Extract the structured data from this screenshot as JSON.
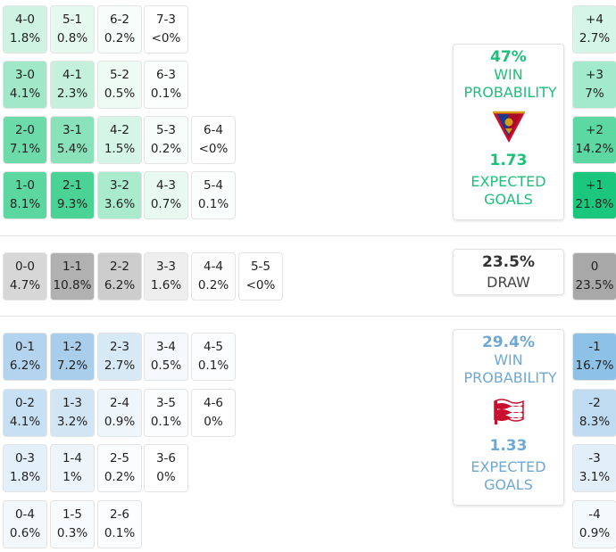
{
  "colors": {
    "home_accent": "#1fbf7a",
    "away_accent": "#6fa8d3",
    "draw_accent": "#333333"
  },
  "home": {
    "win_probability": "47%",
    "win_label": "WIN PROBABILITY",
    "expected_goals": "1.73",
    "xg_label": "EXPECTED GOALS",
    "crest": "pogon-szczecin-crest"
  },
  "draw": {
    "probability": "23.5%",
    "label": "DRAW"
  },
  "away": {
    "win_probability": "29.4%",
    "win_label": "WIN PROBABILITY",
    "expected_goals": "1.33",
    "xg_label": "EXPECTED GOALS",
    "crest": "cracovia-crest"
  },
  "chart_data": {
    "type": "heatmap",
    "title": "",
    "home_wins": [
      [
        {
          "score": "4-0",
          "p": "1.8%",
          "v": 1.8
        },
        {
          "score": "5-1",
          "p": "0.8%",
          "v": 0.8
        },
        {
          "score": "6-2",
          "p": "0.2%",
          "v": 0.2
        },
        {
          "score": "7-3",
          "p": "<0%",
          "v": 0
        }
      ],
      [
        {
          "score": "3-0",
          "p": "4.1%",
          "v": 4.1
        },
        {
          "score": "4-1",
          "p": "2.3%",
          "v": 2.3
        },
        {
          "score": "5-2",
          "p": "0.5%",
          "v": 0.5
        },
        {
          "score": "6-3",
          "p": "0.1%",
          "v": 0.1
        }
      ],
      [
        {
          "score": "2-0",
          "p": "7.1%",
          "v": 7.1
        },
        {
          "score": "3-1",
          "p": "5.4%",
          "v": 5.4
        },
        {
          "score": "4-2",
          "p": "1.5%",
          "v": 1.5
        },
        {
          "score": "5-3",
          "p": "0.2%",
          "v": 0.2
        },
        {
          "score": "6-4",
          "p": "<0%",
          "v": 0
        }
      ],
      [
        {
          "score": "1-0",
          "p": "8.1%",
          "v": 8.1
        },
        {
          "score": "2-1",
          "p": "9.3%",
          "v": 9.3
        },
        {
          "score": "3-2",
          "p": "3.6%",
          "v": 3.6
        },
        {
          "score": "4-3",
          "p": "0.7%",
          "v": 0.7
        },
        {
          "score": "5-4",
          "p": "0.1%",
          "v": 0.1
        }
      ]
    ],
    "draws": [
      {
        "score": "0-0",
        "p": "4.7%",
        "v": 4.7
      },
      {
        "score": "1-1",
        "p": "10.8%",
        "v": 10.8
      },
      {
        "score": "2-2",
        "p": "6.2%",
        "v": 6.2
      },
      {
        "score": "3-3",
        "p": "1.6%",
        "v": 1.6
      },
      {
        "score": "4-4",
        "p": "0.2%",
        "v": 0.2
      },
      {
        "score": "5-5",
        "p": "<0%",
        "v": 0
      }
    ],
    "away_wins": [
      [
        {
          "score": "0-1",
          "p": "6.2%",
          "v": 6.2
        },
        {
          "score": "1-2",
          "p": "7.2%",
          "v": 7.2
        },
        {
          "score": "2-3",
          "p": "2.7%",
          "v": 2.7
        },
        {
          "score": "3-4",
          "p": "0.5%",
          "v": 0.5
        },
        {
          "score": "4-5",
          "p": "0.1%",
          "v": 0.1
        }
      ],
      [
        {
          "score": "0-2",
          "p": "4.1%",
          "v": 4.1
        },
        {
          "score": "1-3",
          "p": "3.2%",
          "v": 3.2
        },
        {
          "score": "2-4",
          "p": "0.9%",
          "v": 0.9
        },
        {
          "score": "3-5",
          "p": "0.1%",
          "v": 0.1
        },
        {
          "score": "4-6",
          "p": "0%",
          "v": 0
        }
      ],
      [
        {
          "score": "0-3",
          "p": "1.8%",
          "v": 1.8
        },
        {
          "score": "1-4",
          "p": "1%",
          "v": 1.0
        },
        {
          "score": "2-5",
          "p": "0.2%",
          "v": 0.2
        },
        {
          "score": "3-6",
          "p": "0%",
          "v": 0
        }
      ],
      [
        {
          "score": "0-4",
          "p": "0.6%",
          "v": 0.6
        },
        {
          "score": "1-5",
          "p": "0.3%",
          "v": 0.3
        },
        {
          "score": "2-6",
          "p": "0.1%",
          "v": 0.1
        }
      ]
    ],
    "goal_difference": {
      "home": [
        {
          "label": "+4",
          "p": "2.7%",
          "v": 2.7
        },
        {
          "label": "+3",
          "p": "7%",
          "v": 7.0
        },
        {
          "label": "+2",
          "p": "14.2%",
          "v": 14.2
        },
        {
          "label": "+1",
          "p": "21.8%",
          "v": 21.8
        }
      ],
      "draw": {
        "label": "0",
        "p": "23.5%",
        "v": 23.5
      },
      "away": [
        {
          "label": "-1",
          "p": "16.7%",
          "v": 16.7
        },
        {
          "label": "-2",
          "p": "8.3%",
          "v": 8.3
        },
        {
          "label": "-3",
          "p": "3.1%",
          "v": 3.1
        },
        {
          "label": "-4",
          "p": "0.9%",
          "v": 0.9
        }
      ]
    }
  }
}
